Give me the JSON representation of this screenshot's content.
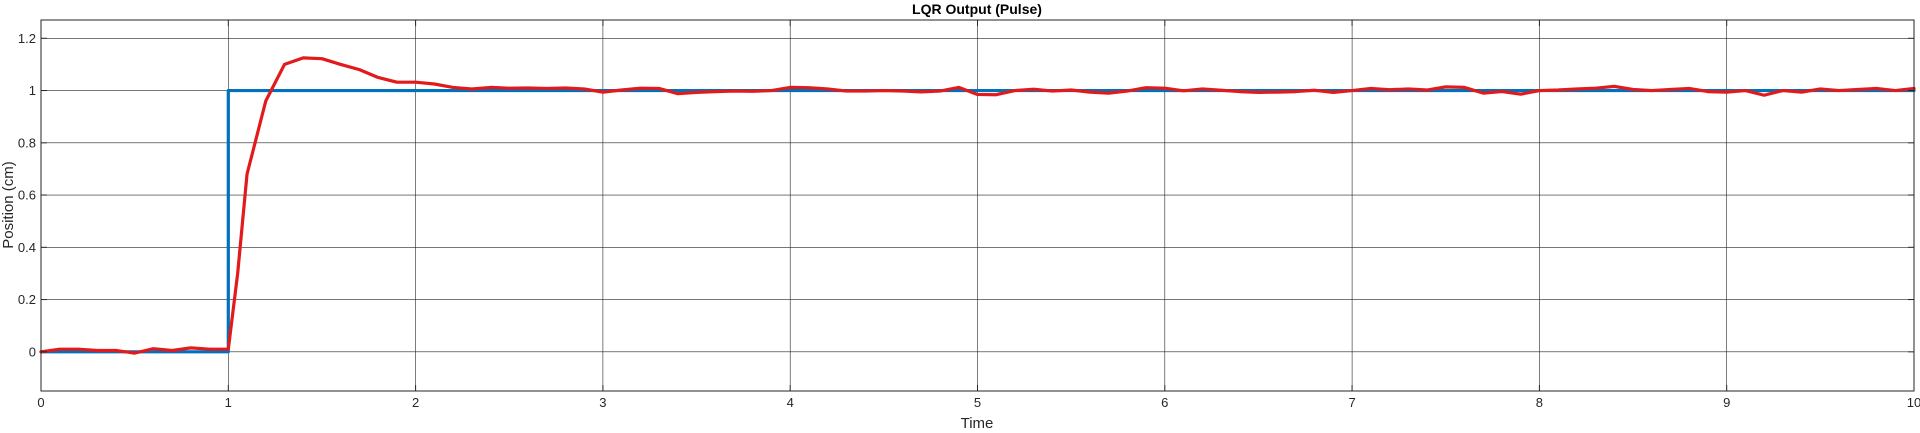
{
  "chart_data": {
    "type": "line",
    "title": "LQR Output (Pulse)",
    "xlabel": "Time",
    "ylabel": "Position (cm)",
    "xlim": [
      0,
      10
    ],
    "ylim": [
      -0.15,
      1.27
    ],
    "grid": true,
    "x_ticks": [
      0,
      1,
      2,
      3,
      4,
      5,
      6,
      7,
      8,
      9,
      10
    ],
    "x_tick_labels": [
      "0",
      "1",
      "2",
      "3",
      "4",
      "5",
      "6",
      "7",
      "8",
      "9",
      "10"
    ],
    "y_ticks": [
      0,
      0.2,
      0.4,
      0.6,
      0.8,
      1,
      1.2
    ],
    "y_tick_labels": [
      "0",
      "0.2",
      "0.4",
      "0.6",
      "0.8",
      "1",
      "1.2"
    ],
    "series": [
      {
        "color": "#0072BD",
        "x": [
          0,
          1,
          1,
          10
        ],
        "y": [
          0,
          0,
          1,
          1
        ]
      },
      {
        "color": "#E31A1C",
        "x": [
          0,
          0.1,
          0.2,
          0.3,
          0.4,
          0.5,
          0.6,
          0.7,
          0.8,
          0.9,
          1.0,
          1.05,
          1.1,
          1.2,
          1.3,
          1.4,
          1.5,
          1.6,
          1.7,
          1.8,
          1.9,
          2.0,
          2.1,
          2.2,
          2.3,
          2.4,
          2.5,
          2.6,
          2.7,
          2.8,
          2.9,
          3.0,
          3.1,
          3.2,
          3.3,
          3.4,
          3.5,
          3.6,
          3.7,
          3.8,
          3.9,
          4.0,
          4.1,
          4.2,
          4.3,
          4.4,
          4.5,
          4.6,
          4.7,
          4.8,
          4.9,
          5.0,
          5.1,
          5.2,
          5.3,
          5.4,
          5.5,
          5.6,
          5.7,
          5.8,
          5.9,
          6.0,
          6.1,
          6.2,
          6.3,
          6.4,
          6.5,
          6.6,
          6.7,
          6.8,
          6.9,
          7.0,
          7.1,
          7.2,
          7.3,
          7.4,
          7.5,
          7.6,
          7.7,
          7.8,
          7.9,
          8.0,
          8.1,
          8.2,
          8.3,
          8.4,
          8.5,
          8.6,
          8.7,
          8.8,
          8.9,
          9.0,
          9.1,
          9.2,
          9.3,
          9.4,
          9.5,
          9.6,
          9.7,
          9.8,
          9.9,
          10.0
        ],
        "y": [
          0,
          0.01,
          0.01,
          0.005,
          0.005,
          -0.005,
          0.012,
          0.005,
          0.015,
          0.01,
          0.01,
          0.3,
          0.68,
          0.96,
          1.1,
          1.125,
          1.122,
          1.1,
          1.08,
          1.05,
          1.032,
          1.032,
          1.025,
          1.012,
          1.006,
          1.012,
          1.009,
          1.01,
          1.008,
          1.01,
          1.006,
          0.994,
          1.002,
          1.009,
          1.008,
          0.988,
          0.993,
          0.996,
          0.998,
          0.997,
          1.0,
          1.012,
          1.011,
          1.006,
          0.998,
          0.998,
          1.0,
          0.998,
          0.995,
          0.998,
          1.012,
          0.985,
          0.984,
          1.0,
          1.005,
          0.998,
          1.002,
          0.994,
          0.99,
          0.998,
          1.011,
          1.009,
          0.999,
          1.006,
          1.001,
          0.996,
          0.993,
          0.994,
          0.996,
          1.001,
          0.993,
          1.0,
          1.008,
          1.003,
          1.006,
          1.002,
          1.014,
          1.012,
          0.99,
          0.996,
          0.986,
          1.0,
          1.002,
          1.006,
          1.009,
          1.016,
          1.004,
          1.0,
          1.004,
          1.008,
          0.996,
          0.994,
          1.0,
          0.982,
          1.0,
          0.994,
          1.006,
          1.0,
          1.004,
          1.008,
          1.0,
          1.008
        ]
      }
    ]
  }
}
